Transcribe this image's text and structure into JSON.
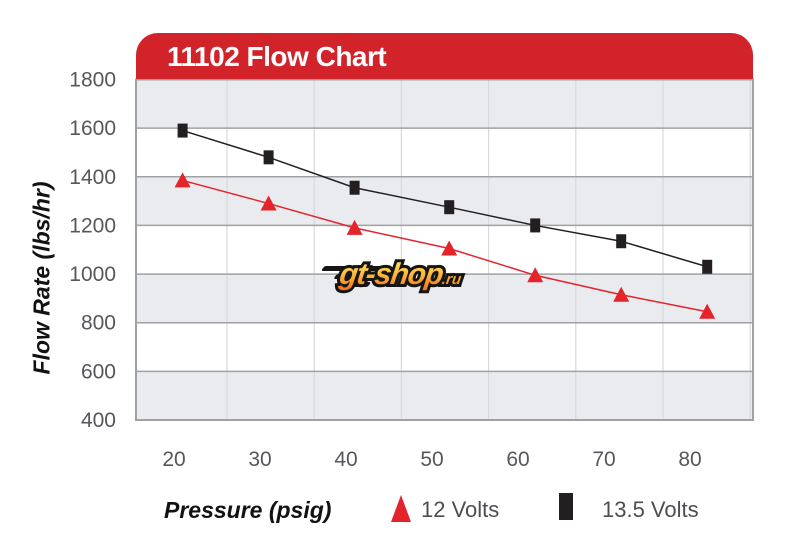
{
  "watermark": {
    "text": "gt-shop",
    "suffix": ".ru"
  },
  "colors": {
    "banner": "#D2232B",
    "band_gray": "#EAEBEF",
    "band_white": "#FFFFFF",
    "h_gridline": "#9FA1A5",
    "v_gridline": "#D8D9DC",
    "plot_border": "#9FA1A5",
    "tick_text": "#55575B",
    "red_series": "#E4232B",
    "black_series": "#231F20"
  },
  "chart_data": {
    "type": "line",
    "title": "11102 Flow Chart",
    "xlabel": "Pressure (psig)",
    "ylabel": "Flow Rate (lbs/hr)",
    "x_ticks": [
      20,
      30,
      40,
      50,
      60,
      70,
      80
    ],
    "y_ticks": [
      1800,
      1600,
      1400,
      1200,
      1000,
      800,
      600,
      400
    ],
    "ylim": [
      400,
      1800
    ],
    "grid": true,
    "legend_position": "bottom",
    "series": [
      {
        "name": "12 Volts",
        "marker": "triangle",
        "color": "#E4232B",
        "x": [
          21,
          31,
          41,
          52,
          62,
          72,
          82
        ],
        "values": [
          1385,
          1290,
          1190,
          1105,
          995,
          915,
          845
        ]
      },
      {
        "name": "13.5 Volts",
        "marker": "square",
        "color": "#231F20",
        "x": [
          21,
          31,
          41,
          52,
          62,
          72,
          82
        ],
        "values": [
          1590,
          1480,
          1355,
          1275,
          1200,
          1135,
          1030
        ]
      }
    ]
  }
}
